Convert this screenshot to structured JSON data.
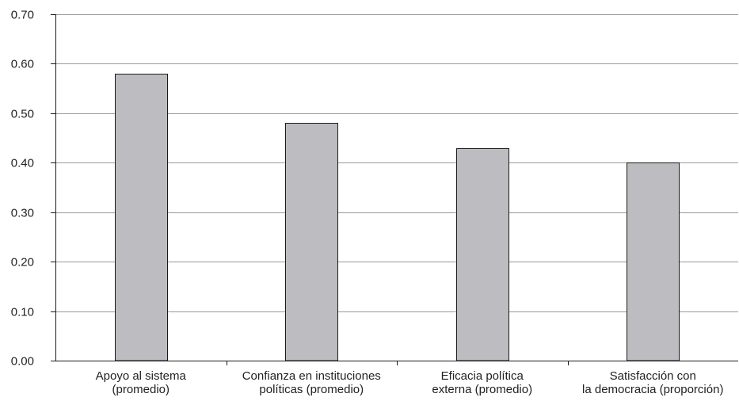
{
  "chart_data": {
    "type": "bar",
    "title": "",
    "xlabel": "",
    "ylabel": "",
    "categories": [
      [
        "Apoyo al sistema",
        "(promedio)"
      ],
      [
        "Confianza en instituciones",
        "políticas (promedio)"
      ],
      [
        "Eficacia política",
        "externa (promedio)"
      ],
      [
        "Satisfacción con",
        "la democracia (proporción)"
      ]
    ],
    "values": [
      0.58,
      0.48,
      0.43,
      0.4
    ],
    "ylim": [
      0,
      0.7
    ],
    "yticks": [
      "0.00",
      "0.10",
      "0.20",
      "0.30",
      "0.40",
      "0.50",
      "0.60",
      "0.70"
    ],
    "grid": true,
    "legend": "none",
    "colors": {
      "bar_fill": "#bdbdc1",
      "bar_stroke": "#1a1a1a",
      "grid": "#9a9a9a",
      "axis": "#1a1a1a"
    }
  }
}
